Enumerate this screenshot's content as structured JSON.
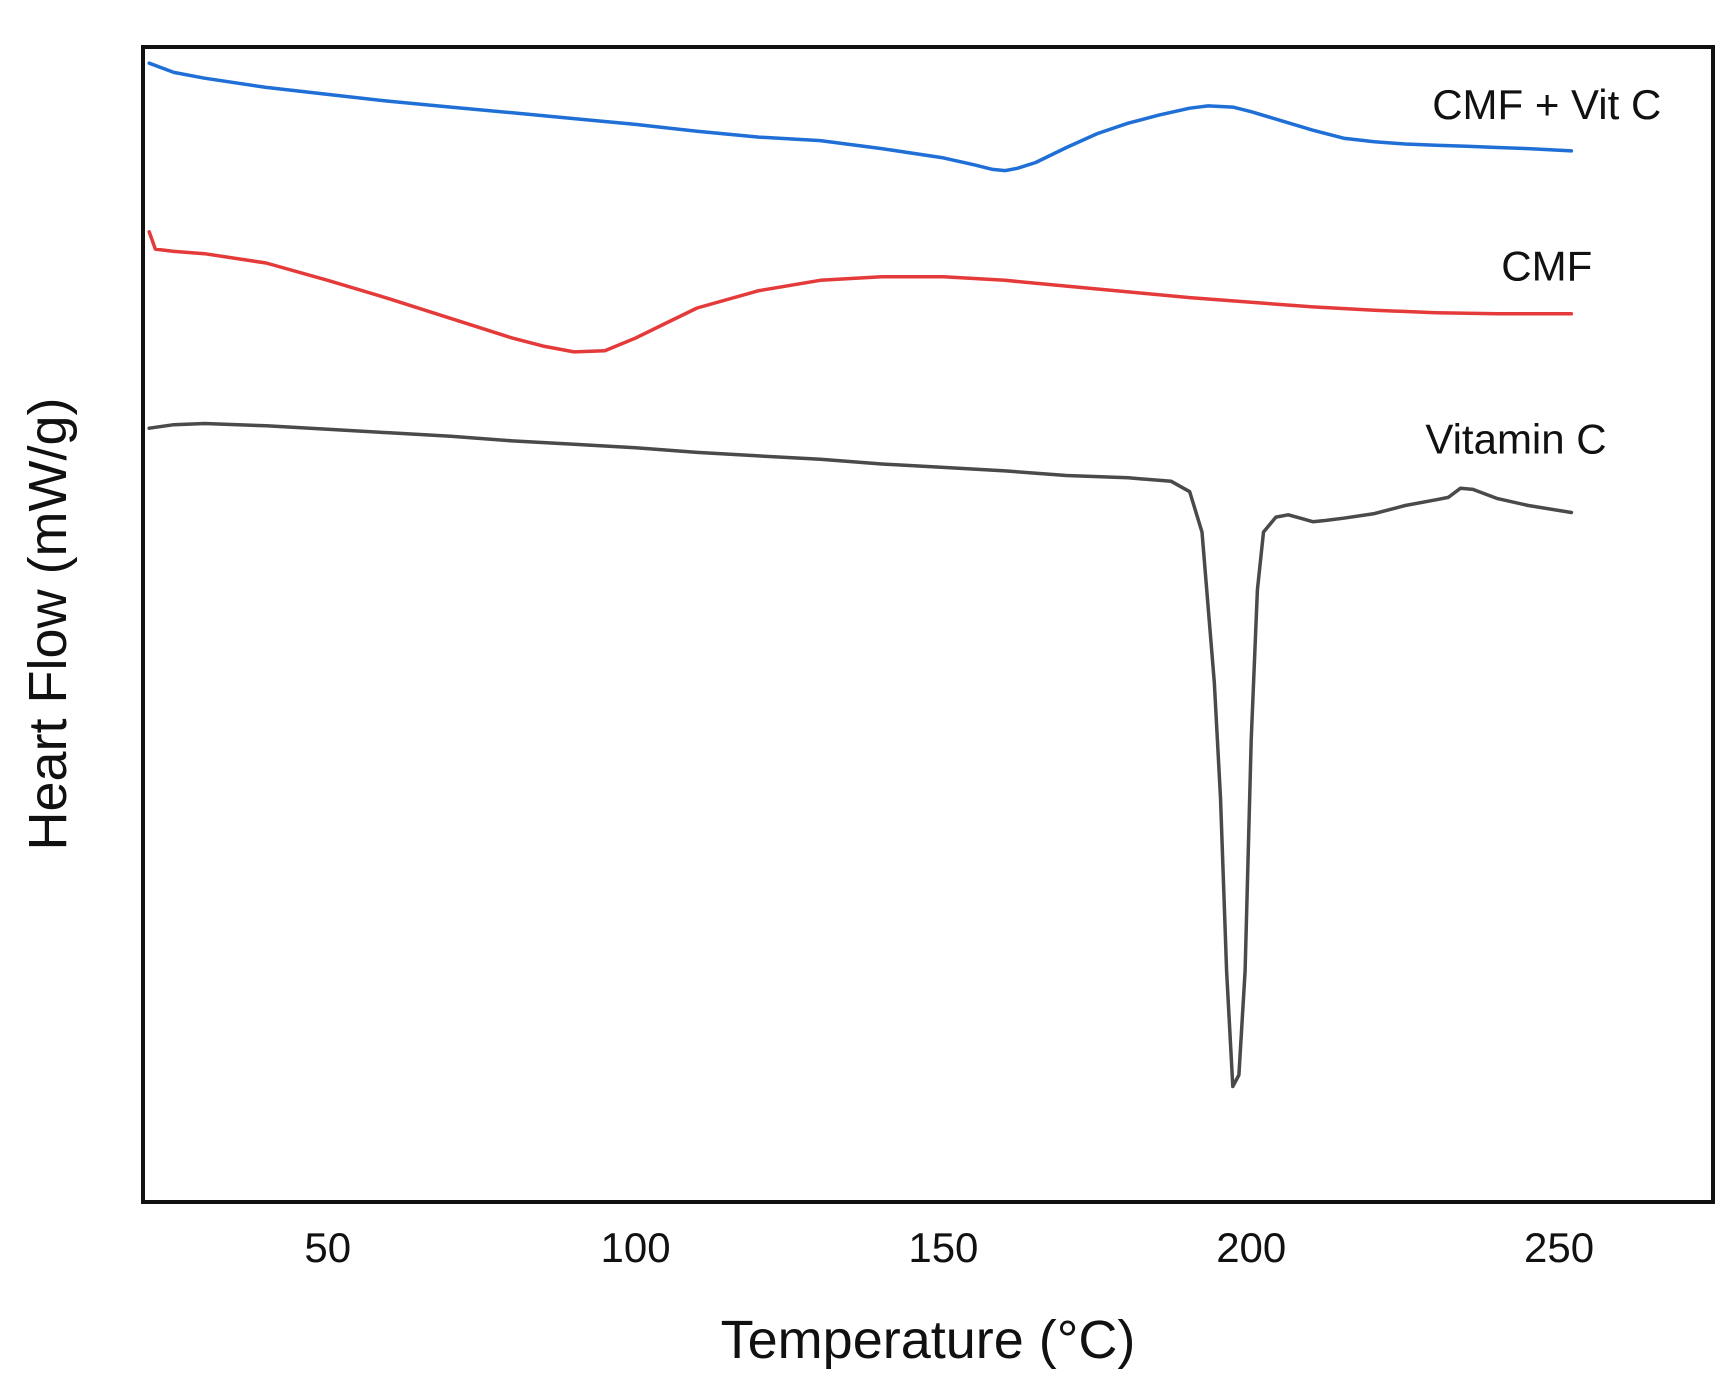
{
  "chart_data": {
    "type": "line",
    "title": "",
    "xlabel": "Temperature (°C)",
    "ylabel": "Heart Flow (mW/g)",
    "xlim": [
      20,
      275
    ],
    "ylim": [
      0,
      100
    ],
    "xticks": [
      50,
      100,
      150,
      200,
      250
    ],
    "yticks_shown": false,
    "grid": false,
    "legend": "inline labels at right end of each curve",
    "series": [
      {
        "name": "CMF + Vit C",
        "color": "#1f6fd6",
        "label_anchor": [
          248,
          95
        ],
        "x": [
          21,
          25,
          30,
          40,
          50,
          60,
          70,
          80,
          90,
          100,
          110,
          120,
          130,
          140,
          150,
          155,
          158,
          160,
          162,
          165,
          170,
          175,
          180,
          185,
          190,
          193,
          197,
          200,
          205,
          210,
          215,
          220,
          225,
          230,
          235,
          240,
          245,
          252
        ],
        "y": [
          98.6,
          97.8,
          97.3,
          96.5,
          95.9,
          95.3,
          94.8,
          94.3,
          93.8,
          93.3,
          92.7,
          92.2,
          91.9,
          91.2,
          90.4,
          89.8,
          89.4,
          89.3,
          89.5,
          90.0,
          91.3,
          92.5,
          93.4,
          94.1,
          94.7,
          94.9,
          94.8,
          94.4,
          93.6,
          92.8,
          92.1,
          91.8,
          91.6,
          91.5,
          91.4,
          91.3,
          91.2,
          91.0
        ]
      },
      {
        "name": "CMF",
        "color": "#e53a3a",
        "label_anchor": [
          248,
          81
        ],
        "x": [
          21,
          22,
          25,
          30,
          40,
          50,
          60,
          70,
          80,
          85,
          90,
          95,
          100,
          105,
          110,
          120,
          130,
          140,
          150,
          160,
          170,
          180,
          190,
          200,
          210,
          220,
          230,
          240,
          250,
          252
        ],
        "y": [
          84.0,
          82.5,
          82.3,
          82.1,
          81.3,
          79.8,
          78.2,
          76.5,
          74.8,
          74.1,
          73.6,
          73.7,
          74.8,
          76.1,
          77.4,
          78.9,
          79.8,
          80.1,
          80.1,
          79.8,
          79.3,
          78.8,
          78.3,
          77.9,
          77.5,
          77.2,
          77.0,
          76.9,
          76.9,
          76.9
        ]
      },
      {
        "name": "Vitamin C",
        "color": "#4a4a4a",
        "label_anchor": [
          243,
          66
        ],
        "x": [
          21,
          25,
          30,
          40,
          50,
          60,
          70,
          80,
          90,
          100,
          110,
          120,
          130,
          140,
          150,
          160,
          170,
          180,
          187,
          190,
          192,
          194,
          195,
          196,
          197,
          198,
          199,
          200,
          201,
          202,
          204,
          206,
          208,
          210,
          212,
          215,
          220,
          225,
          230,
          232,
          234,
          236,
          240,
          245,
          252
        ],
        "y": [
          67.0,
          67.3,
          67.4,
          67.2,
          66.9,
          66.6,
          66.3,
          65.9,
          65.6,
          65.3,
          64.9,
          64.6,
          64.3,
          63.9,
          63.6,
          63.3,
          62.9,
          62.7,
          62.4,
          61.5,
          58.0,
          45.0,
          35.0,
          20.0,
          10.0,
          11.0,
          20.0,
          40.0,
          53.0,
          58.0,
          59.3,
          59.5,
          59.2,
          58.9,
          59.0,
          59.2,
          59.6,
          60.3,
          60.8,
          61.0,
          61.8,
          61.7,
          60.9,
          60.3,
          59.7
        ]
      }
    ]
  }
}
